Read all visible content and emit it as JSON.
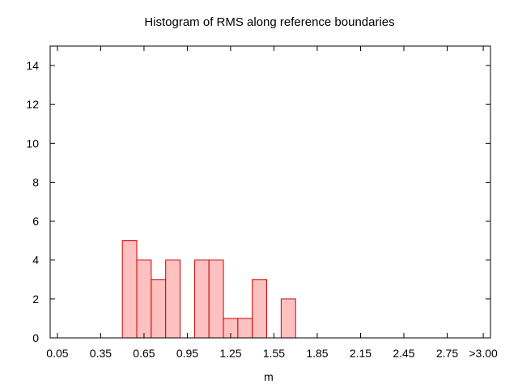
{
  "chart_data": {
    "type": "bar",
    "title": "Histogram of RMS along reference boundaries",
    "xlabel": "m",
    "ylabel": "",
    "ylim": [
      0,
      15
    ],
    "xlim": [
      0.0,
      3.05
    ],
    "bin_width": 0.1,
    "yticks": [
      0,
      2,
      4,
      6,
      8,
      10,
      12,
      14
    ],
    "xticks": [
      {
        "value": 0.05,
        "label": "0.05"
      },
      {
        "value": 0.35,
        "label": "0.35"
      },
      {
        "value": 0.65,
        "label": "0.65"
      },
      {
        "value": 0.95,
        "label": "0.95"
      },
      {
        "value": 1.25,
        "label": "1.25"
      },
      {
        "value": 1.55,
        "label": "1.55"
      },
      {
        "value": 1.85,
        "label": "1.85"
      },
      {
        "value": 2.15,
        "label": "2.15"
      },
      {
        "value": 2.45,
        "label": "2.45"
      },
      {
        "value": 2.75,
        "label": "2.75"
      },
      {
        "value": 3.0,
        "label": ">3.00"
      }
    ],
    "bin_centers": [
      0.55,
      0.65,
      0.75,
      0.85,
      1.05,
      1.15,
      1.25,
      1.35,
      1.45,
      1.65
    ],
    "values": [
      5,
      4,
      3,
      4,
      4,
      4,
      1,
      1,
      3,
      2
    ],
    "bar_fill": "#ffc0c0",
    "bar_stroke": "#cc0000",
    "grid": false,
    "legend": "none"
  }
}
